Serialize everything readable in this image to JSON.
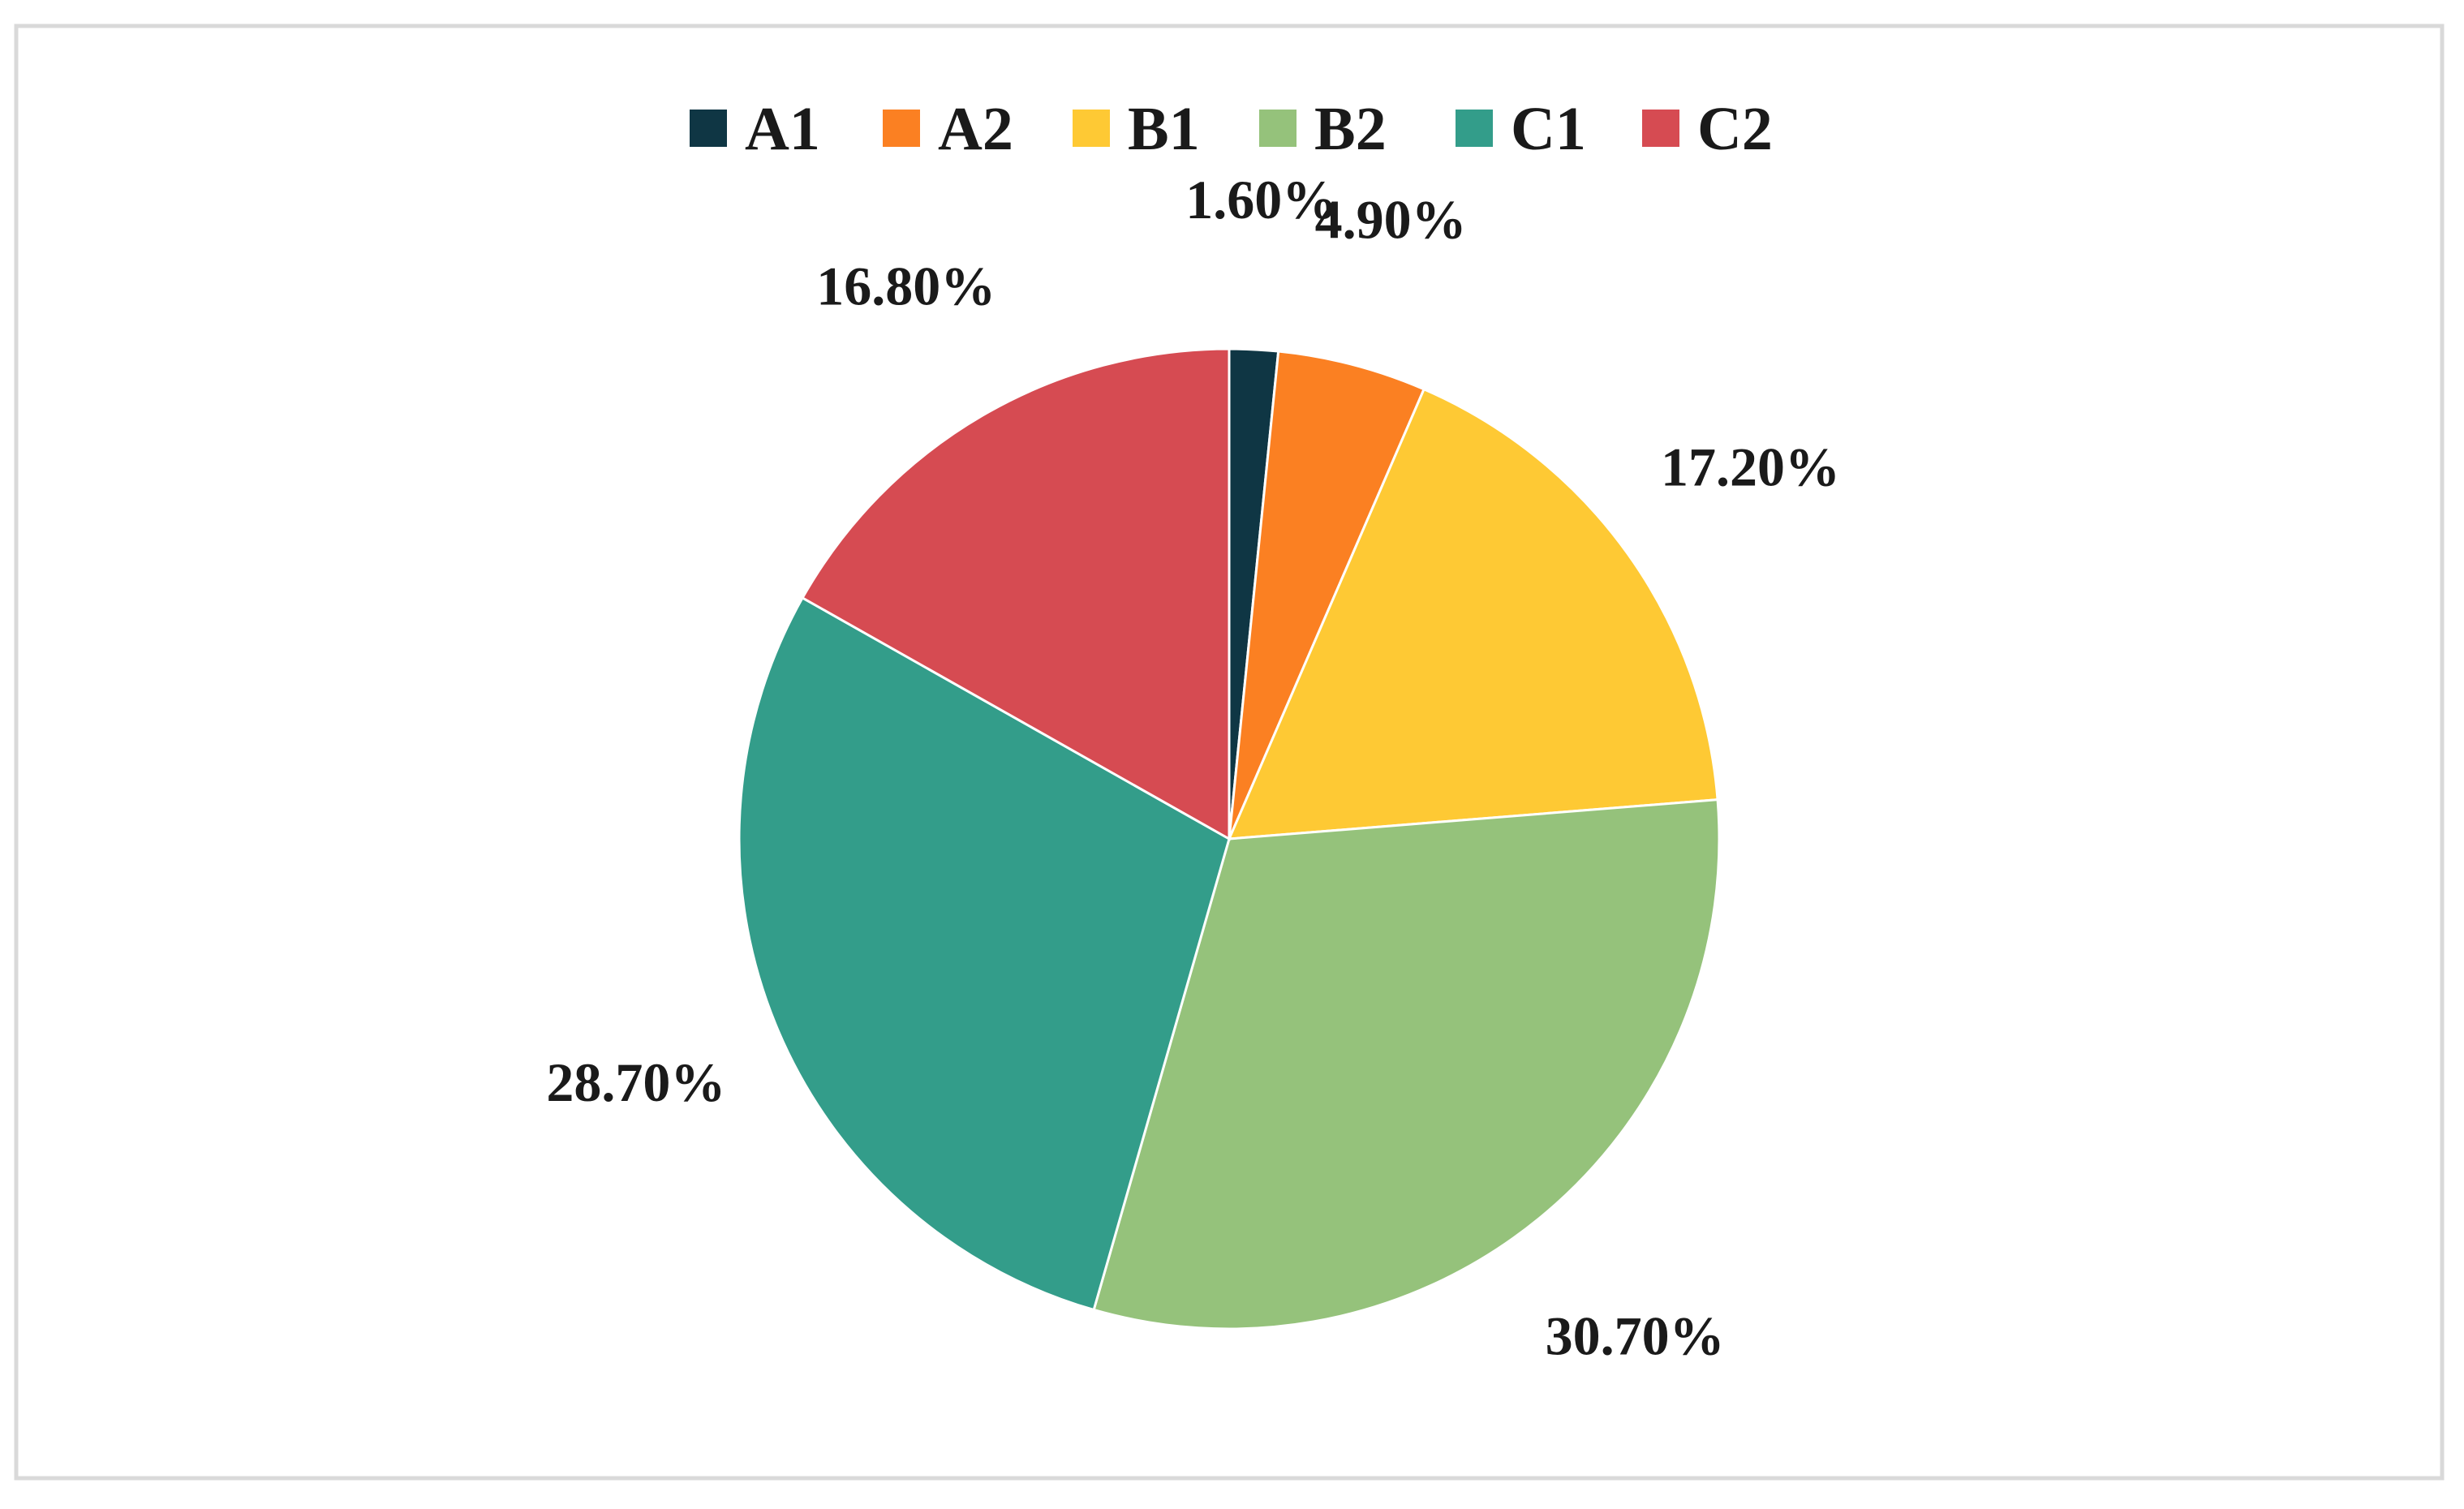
{
  "chart_data": {
    "type": "pie",
    "categories": [
      "A1",
      "A2",
      "B1",
      "B2",
      "C1",
      "C2"
    ],
    "values": [
      1.6,
      4.9,
      17.2,
      30.7,
      28.7,
      16.8
    ],
    "labels": [
      "1.60%",
      "4.90%",
      "17.20%",
      "30.70%",
      "28.70%",
      "16.80%"
    ],
    "colors": [
      "#0f3644",
      "#fb8022",
      "#fec934",
      "#95c27b",
      "#339d8a",
      "#d64b52"
    ],
    "start_angle": "12 o'clock",
    "direction": "clockwise",
    "legend": "top"
  }
}
